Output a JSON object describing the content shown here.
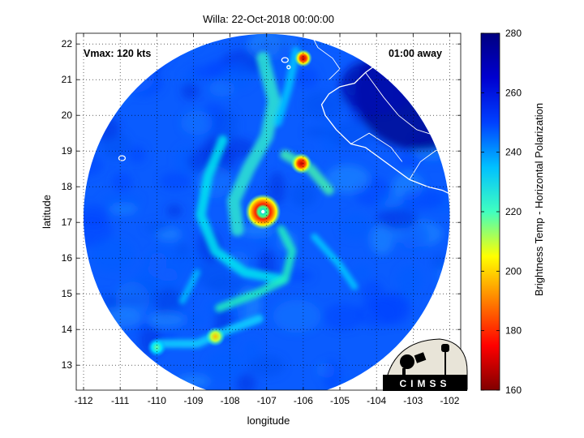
{
  "chart_data": {
    "type": "heatmap",
    "title": "Willa: 22-Oct-2018 00:00:00",
    "xlabel": "longitude",
    "ylabel": "latitude",
    "xlim": [
      -112.2,
      -101.7
    ],
    "ylim": [
      12.3,
      22.3
    ],
    "x_ticks": [
      -112,
      -111,
      -110,
      -109,
      -108,
      -107,
      -106,
      -105,
      -104,
      -103,
      -102
    ],
    "y_ticks": [
      13,
      14,
      15,
      16,
      17,
      18,
      19,
      20,
      21,
      22
    ],
    "grid": true,
    "colorbar": {
      "label": "Brightness Temp - Horizontal Polarization",
      "range": [
        160,
        280
      ],
      "ticks": [
        160,
        180,
        200,
        220,
        240,
        260,
        280
      ],
      "colormap": "jet",
      "colors": [
        "#800000",
        "#ff0000",
        "#ffff00",
        "#00ffff",
        "#0000ff",
        "#000080"
      ]
    },
    "annotations": {
      "vmax": "Vmax: 120 kts",
      "time_offset": "01:00 away"
    },
    "storm_center": {
      "lon": -107.1,
      "lat": 17.3
    },
    "swath": {
      "center_lon": -107.0,
      "center_lat": 17.15,
      "radius_deg": 5.0
    },
    "features": [
      {
        "name": "eyewall",
        "lon": -107.1,
        "lat": 17.3,
        "tb": 175
      },
      {
        "name": "north band convection",
        "lon": -106.0,
        "lat": 21.6,
        "tb": 175
      },
      {
        "name": "band convection",
        "lon": -106.05,
        "lat": 18.65,
        "tb": 190
      },
      {
        "name": "south convection",
        "lon": -108.4,
        "lat": 13.8,
        "tb": 205
      },
      {
        "name": "southwest convection",
        "lon": -110.0,
        "lat": 13.5,
        "tb": 220
      }
    ]
  },
  "logo": {
    "text": "CIMSS"
  }
}
